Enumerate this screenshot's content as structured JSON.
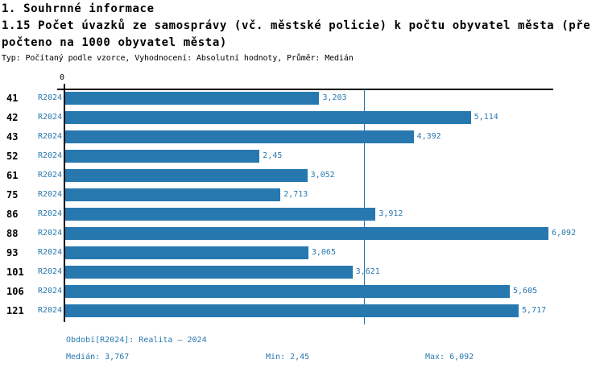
{
  "header": {
    "title": "1. Souhrnné informace",
    "subtitle_line1": "1.15 Počet úvazků ze samosprávy (vč. městské policie) k počtu obyvatel města (pře",
    "subtitle_line2": "počteno na 1000 obyvatel města)",
    "meta": "Typ: Počítaný podle vzorce, Vyhodnocení: Absolutní hodnoty, Průměr: Medián"
  },
  "chart_data": {
    "type": "bar",
    "orientation": "horizontal",
    "title": "1.15 Počet úvazků ze samosprávy (vč. městské policie) k počtu obyvatel města (přepočteno na 1000 obyvatel města)",
    "categories": [
      "41",
      "42",
      "43",
      "52",
      "61",
      "75",
      "86",
      "88",
      "93",
      "101",
      "106",
      "121"
    ],
    "period": "R2024",
    "values": [
      3.203,
      5.114,
      4.392,
      2.45,
      3.052,
      2.713,
      3.912,
      6.092,
      3.065,
      3.621,
      5.605,
      5.717
    ],
    "value_labels": [
      "3,203",
      "5,114",
      "4,392",
      "2,45",
      "3,052",
      "2,713",
      "3,912",
      "6,092",
      "3,065",
      "3,621",
      "5,605",
      "5,717"
    ],
    "axis": {
      "origin_label": "0",
      "min": 0,
      "max": 6.153,
      "grid": false
    },
    "median": 3.767,
    "min": 2.45,
    "max": 6.092,
    "bar_color": "#2878b0",
    "legend_position": "bottom"
  },
  "footer": {
    "period_label": "Období[R2024]: Realita – 2024",
    "median_label": "Medián: 3,767",
    "min_label": "Min: 2,45",
    "max_label": "Max: 6,092"
  }
}
